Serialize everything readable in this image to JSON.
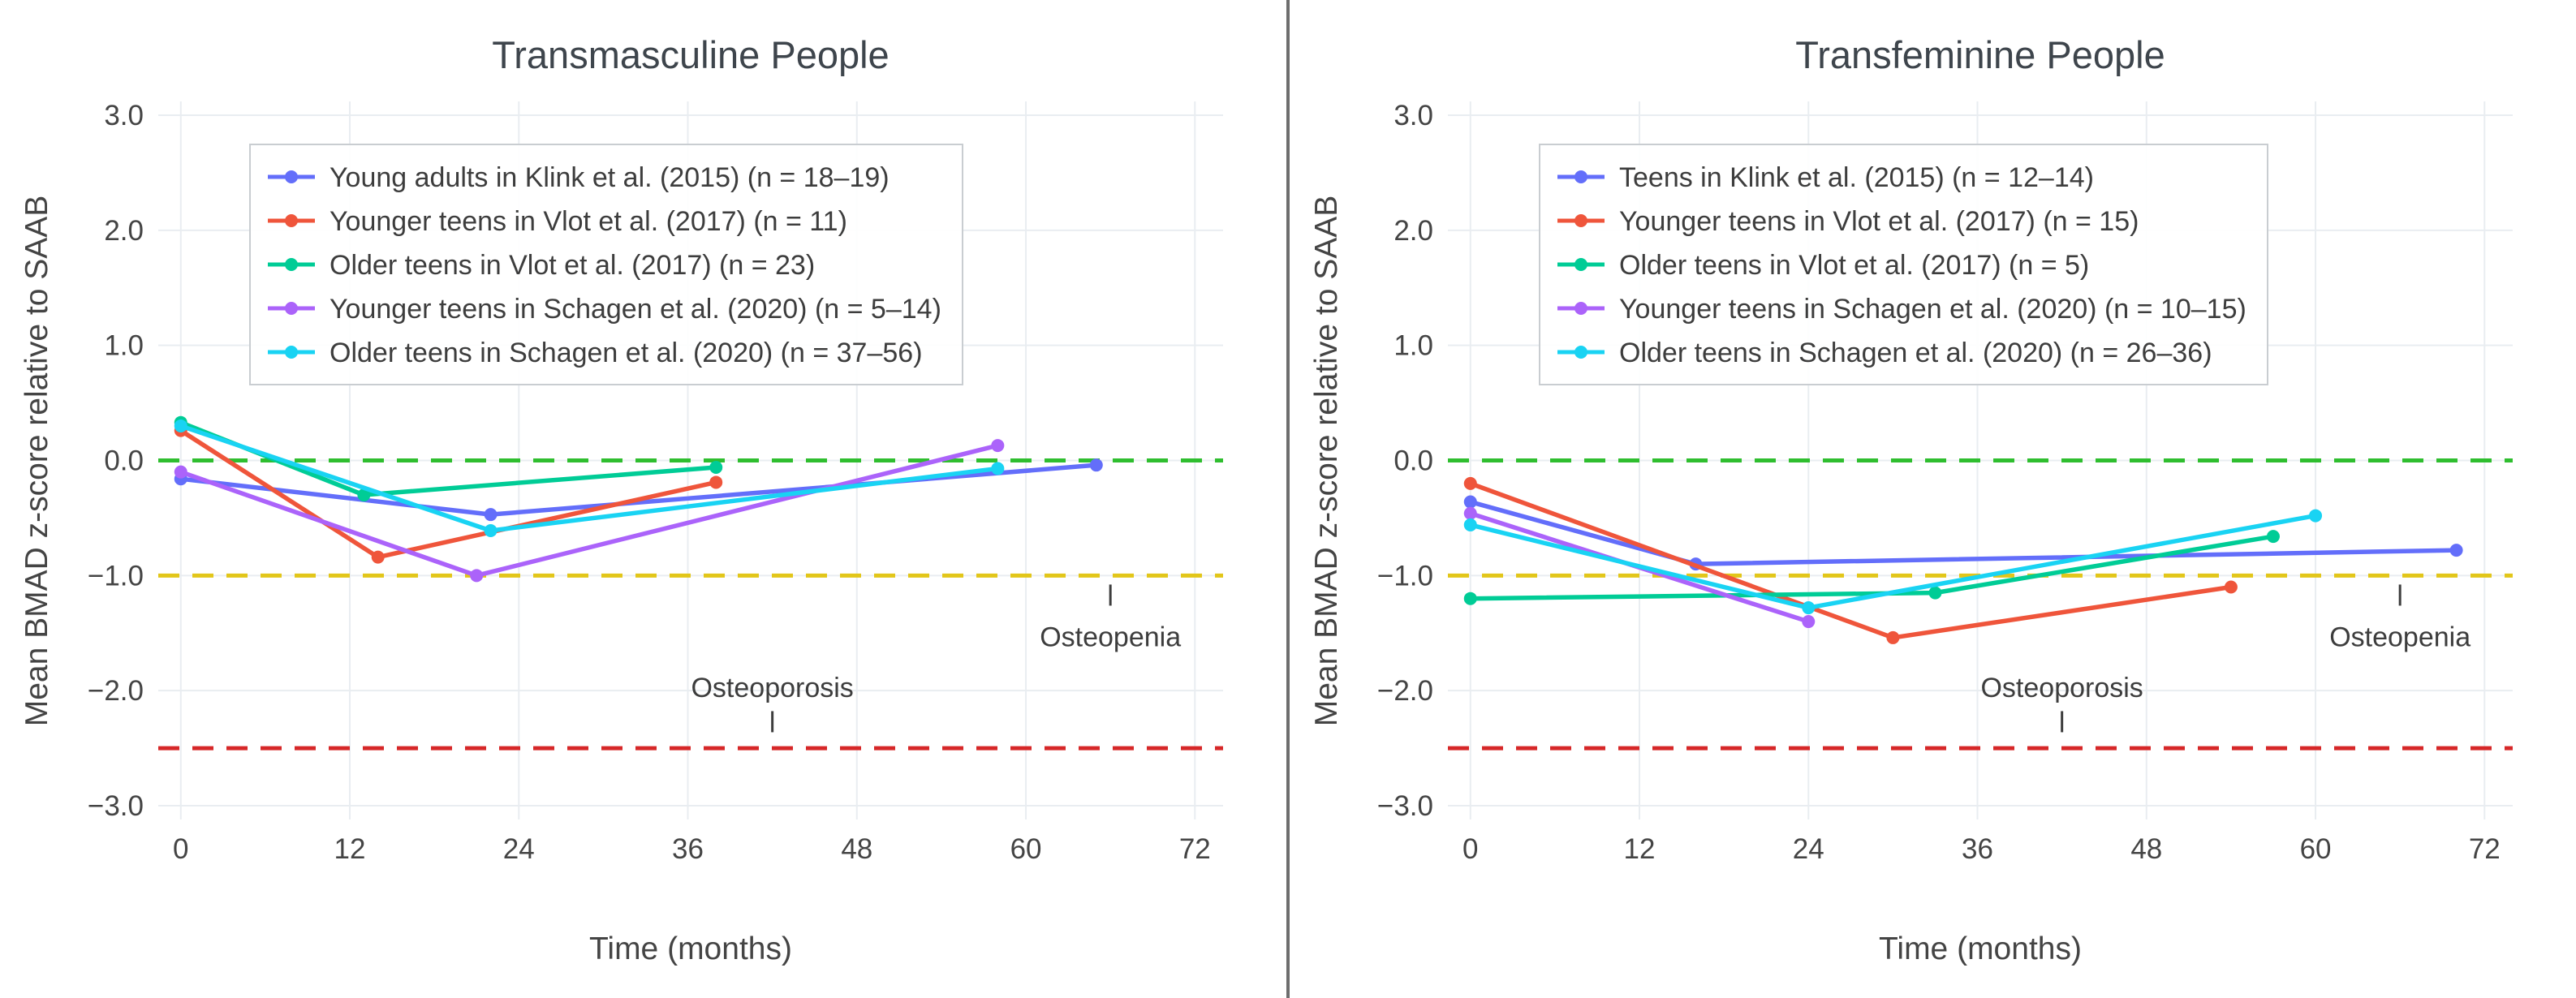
{
  "figure": {
    "background": "#ffffff",
    "divider_color": "#6e6e6e"
  },
  "chart_data": [
    {
      "type": "line",
      "title": "Transmasculine People",
      "xlabel": "Time (months)",
      "ylabel": "Mean BMAD z-score relative to SAAB",
      "xlim": [
        -1.6,
        74
      ],
      "ylim": [
        -3.12,
        3.12
      ],
      "grid": true,
      "legend_position": "top-left",
      "x_ticks": [
        {
          "v": 0,
          "label": "0"
        },
        {
          "v": 12,
          "label": "12"
        },
        {
          "v": 24,
          "label": "24"
        },
        {
          "v": 36,
          "label": "36"
        },
        {
          "v": 48,
          "label": "48"
        },
        {
          "v": 60,
          "label": "60"
        },
        {
          "v": 72,
          "label": "72"
        }
      ],
      "y_ticks": [
        {
          "v": 3,
          "label": "3.0"
        },
        {
          "v": 2,
          "label": "2.0"
        },
        {
          "v": 1,
          "label": "1.0"
        },
        {
          "v": 0,
          "label": "0.0"
        },
        {
          "v": -1,
          "label": "−1.0"
        },
        {
          "v": -2,
          "label": "−2.0"
        },
        {
          "v": -3,
          "label": "−3.0"
        }
      ],
      "ref_lines": [
        {
          "y": 0,
          "color": "#2fbe2f",
          "style": "dashed"
        },
        {
          "y": -1,
          "color": "#e2c619",
          "style": "dashed"
        },
        {
          "y": -2.5,
          "color": "#d62728",
          "style": "dashed"
        }
      ],
      "annotations": [
        {
          "text": "Osteoporosis",
          "x": 42,
          "text_y": -1.97,
          "tick_y": -2.27
        },
        {
          "text": "Osteopenia",
          "x": 66,
          "text_y": -1.53,
          "tick_y": -1.17
        }
      ],
      "series": [
        {
          "name": "Young adults in Klink et al. (2015) (n = 18–19)",
          "color": "#636EFA",
          "points": [
            [
              0,
              -0.16
            ],
            [
              22,
              -0.47
            ],
            [
              65,
              -0.04
            ]
          ]
        },
        {
          "name": "Younger teens in Vlot et al. (2017) (n = 11)",
          "color": "#EF553B",
          "points": [
            [
              0,
              0.26
            ],
            [
              14,
              -0.84
            ],
            [
              38,
              -0.19
            ]
          ]
        },
        {
          "name": "Older teens in Vlot et al. (2017) (n = 23)",
          "color": "#00CC96",
          "points": [
            [
              0,
              0.33
            ],
            [
              13,
              -0.3
            ],
            [
              38,
              -0.06
            ]
          ]
        },
        {
          "name": "Younger teens in Schagen et al. (2020) (n = 5–14)",
          "color": "#AB63FA",
          "points": [
            [
              0,
              -0.1
            ],
            [
              21,
              -1.0
            ],
            [
              58,
              0.13
            ]
          ]
        },
        {
          "name": "Older teens in Schagen et al. (2020) (n = 37–56)",
          "color": "#19D3F3",
          "points": [
            [
              0,
              0.3
            ],
            [
              22,
              -0.61
            ],
            [
              58,
              -0.07
            ]
          ]
        }
      ]
    },
    {
      "type": "line",
      "title": "Transfeminine People",
      "xlabel": "Time (months)",
      "ylabel": "Mean BMAD z-score relative to SAAB",
      "xlim": [
        -1.6,
        74
      ],
      "ylim": [
        -3.12,
        3.12
      ],
      "grid": true,
      "legend_position": "top-left",
      "x_ticks": [
        {
          "v": 0,
          "label": "0"
        },
        {
          "v": 12,
          "label": "12"
        },
        {
          "v": 24,
          "label": "24"
        },
        {
          "v": 36,
          "label": "36"
        },
        {
          "v": 48,
          "label": "48"
        },
        {
          "v": 60,
          "label": "60"
        },
        {
          "v": 72,
          "label": "72"
        }
      ],
      "y_ticks": [
        {
          "v": 3,
          "label": "3.0"
        },
        {
          "v": 2,
          "label": "2.0"
        },
        {
          "v": 1,
          "label": "1.0"
        },
        {
          "v": 0,
          "label": "0.0"
        },
        {
          "v": -1,
          "label": "−1.0"
        },
        {
          "v": -2,
          "label": "−2.0"
        },
        {
          "v": -3,
          "label": "−3.0"
        }
      ],
      "ref_lines": [
        {
          "y": 0,
          "color": "#2fbe2f",
          "style": "dashed"
        },
        {
          "y": -1,
          "color": "#e2c619",
          "style": "dashed"
        },
        {
          "y": -2.5,
          "color": "#d62728",
          "style": "dashed"
        }
      ],
      "annotations": [
        {
          "text": "Osteoporosis",
          "x": 42,
          "text_y": -1.97,
          "tick_y": -2.27
        },
        {
          "text": "Osteopenia",
          "x": 66,
          "text_y": -1.53,
          "tick_y": -1.17
        }
      ],
      "series": [
        {
          "name": "Teens in Klink et al. (2015) (n = 12–14)",
          "color": "#636EFA",
          "points": [
            [
              0,
              -0.36
            ],
            [
              16,
              -0.9
            ],
            [
              70,
              -0.78
            ]
          ]
        },
        {
          "name": "Younger teens in Vlot et al. (2017) (n = 15)",
          "color": "#EF553B",
          "points": [
            [
              0,
              -0.2
            ],
            [
              30,
              -1.54
            ],
            [
              54,
              -1.1
            ]
          ]
        },
        {
          "name": "Older teens in Vlot et al. (2017) (n = 5)",
          "color": "#00CC96",
          "points": [
            [
              0,
              -1.2
            ],
            [
              33,
              -1.15
            ],
            [
              57,
              -0.66
            ]
          ]
        },
        {
          "name": "Younger teens in Schagen et al. (2020) (n = 10–15)",
          "color": "#AB63FA",
          "points": [
            [
              0,
              -0.46
            ],
            [
              24,
              -1.4
            ]
          ]
        },
        {
          "name": "Older teens in Schagen et al. (2020) (n = 26–36)",
          "color": "#19D3F3",
          "points": [
            [
              0,
              -0.56
            ],
            [
              24,
              -1.28
            ],
            [
              60,
              -0.48
            ]
          ]
        }
      ]
    }
  ]
}
